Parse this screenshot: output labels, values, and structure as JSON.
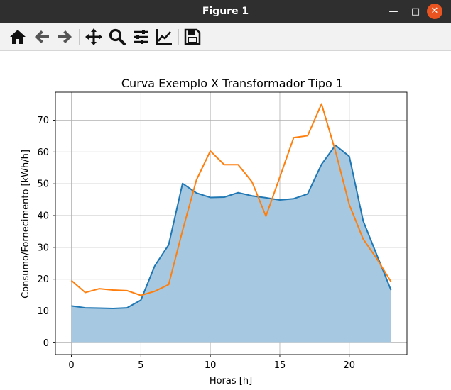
{
  "window": {
    "title": "Figure 1",
    "minimize_glyph": "—",
    "maximize_glyph": "□",
    "close_glyph": "✕"
  },
  "toolbar": {
    "buttons": [
      {
        "name": "home-icon"
      },
      {
        "name": "back-arrow-icon"
      },
      {
        "name": "forward-arrow-icon"
      },
      {
        "name": "pan-icon"
      },
      {
        "name": "zoom-icon"
      },
      {
        "name": "configure-subplots-icon"
      },
      {
        "name": "edit-axis-icon"
      },
      {
        "name": "save-icon"
      }
    ]
  },
  "chart_data": {
    "type": "line",
    "title": "Curva Exemplo X  Transformador Tipo 1",
    "xlabel": "Horas [h]",
    "ylabel": "Consumo/Fornecimento [kWh/h]",
    "xlim": [
      -1.15,
      24.15
    ],
    "ylim": [
      -3.7,
      78.8
    ],
    "xticks": [
      0,
      5,
      10,
      15,
      20
    ],
    "yticks": [
      0,
      10,
      20,
      30,
      40,
      50,
      60,
      70
    ],
    "grid": true,
    "x": [
      0,
      1,
      2,
      3,
      4,
      5,
      6,
      7,
      8,
      9,
      10,
      11,
      12,
      13,
      14,
      15,
      16,
      17,
      18,
      19,
      20,
      21,
      22,
      23
    ],
    "series": [
      {
        "color": "#1f77b4",
        "fill": "#a6c8e1",
        "filled": true,
        "values": [
          11.6,
          11.0,
          10.9,
          10.8,
          11.0,
          13.4,
          24.2,
          30.8,
          50.1,
          47.1,
          45.7,
          45.8,
          47.2,
          46.2,
          45.6,
          44.9,
          45.3,
          46.8,
          56.1,
          62.1,
          58.6,
          38.3,
          27.4,
          16.6
        ]
      },
      {
        "color": "#ff7f0e",
        "filled": false,
        "values": [
          19.6,
          15.8,
          17.0,
          16.6,
          16.4,
          14.9,
          16.2,
          18.3,
          35.3,
          51.2,
          60.3,
          56.0,
          56.0,
          50.6,
          39.8,
          52.1,
          64.5,
          65.1,
          75.1,
          60.3,
          43.4,
          32.6,
          26.3,
          19.2
        ]
      }
    ]
  }
}
